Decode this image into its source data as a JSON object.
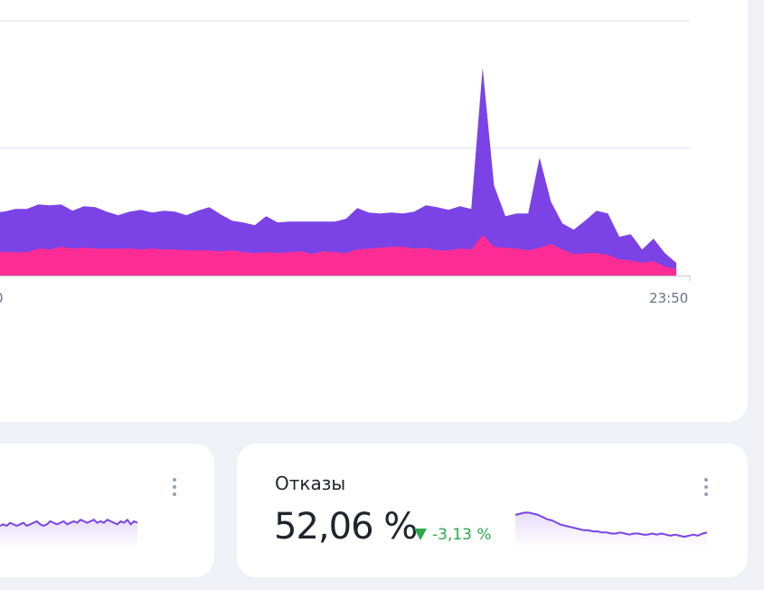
{
  "main_chart": {
    "chart_data": {
      "type": "area",
      "stacked": true,
      "x_ticks": [
        "0",
        "23:50"
      ],
      "series": [
        {
          "color": "#7b43e6",
          "values": [
            70,
            71,
            74,
            74,
            79,
            78,
            79,
            72,
            77,
            76,
            71,
            67,
            71,
            73,
            70,
            72,
            71,
            67,
            72,
            76,
            68,
            61,
            59,
            56,
            66,
            59,
            60,
            60,
            60,
            60,
            60,
            63,
            75,
            70,
            69,
            70,
            69,
            71,
            78,
            76,
            73,
            77,
            74,
            231,
            100,
            66,
            69,
            69,
            131,
            82,
            58,
            51,
            61,
            72,
            69,
            43,
            46,
            29,
            41,
            25,
            14
          ]
        },
        {
          "color": "#fe2d95",
          "values": [
            27,
            26,
            26,
            26,
            30,
            29,
            32,
            30,
            31,
            30,
            30,
            30,
            30,
            29,
            30,
            29,
            29,
            28,
            28,
            28,
            27,
            28,
            26,
            25,
            26,
            25,
            26,
            27,
            24,
            27,
            26,
            25,
            29,
            30,
            31,
            32,
            32,
            30,
            31,
            28,
            28,
            30,
            29,
            45,
            32,
            31,
            30,
            28,
            31,
            35,
            29,
            24,
            25,
            25,
            23,
            18,
            17,
            14,
            16,
            10,
            7
          ]
        }
      ]
    },
    "colors": {
      "violet": "#7b43e6",
      "pink": "#fe2d95",
      "grid": "#dfe2e8"
    }
  },
  "cards": [
    {
      "title": "",
      "value": "",
      "delta": "",
      "sparkline": [
        30,
        31,
        30,
        32,
        31,
        30,
        31,
        32,
        30,
        31,
        32,
        33,
        31,
        30,
        31,
        33,
        32,
        31,
        32,
        33,
        31,
        32,
        33,
        32,
        34,
        33,
        32,
        33,
        34,
        32,
        33,
        32,
        34,
        33,
        32,
        31,
        33,
        32,
        34,
        31,
        33,
        32
      ]
    },
    {
      "title": "Отказы",
      "value": "52,06 %",
      "delta": "-3,13 %",
      "delta_color": "#2ba84a",
      "sparkline": [
        54,
        55,
        56,
        56,
        55,
        54,
        52,
        50,
        49,
        47,
        45,
        44,
        43,
        42,
        41,
        40,
        40,
        39,
        39,
        38,
        38,
        37,
        37,
        38,
        37,
        36,
        37,
        37,
        36,
        36,
        37,
        36,
        37,
        36,
        35,
        36,
        35,
        34,
        35,
        36,
        35,
        37,
        38
      ]
    }
  ]
}
